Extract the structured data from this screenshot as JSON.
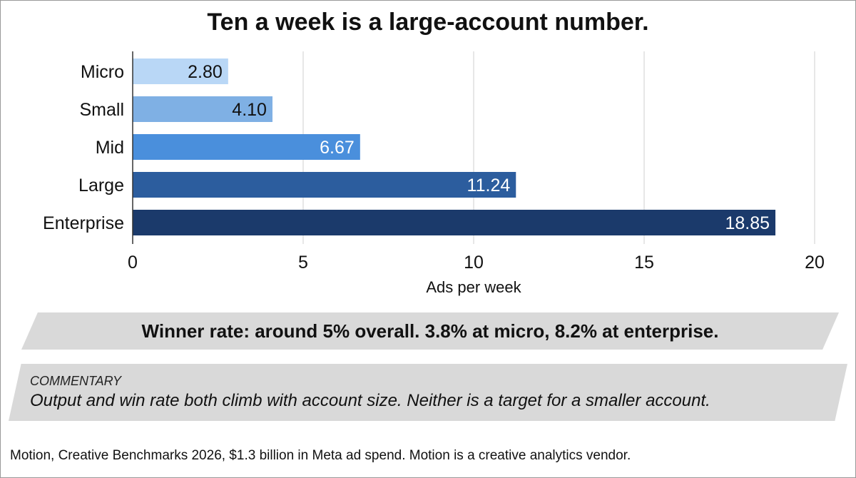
{
  "chart_data": {
    "type": "bar",
    "orientation": "horizontal",
    "title": "Ten a week is a large-account number.",
    "xlabel": "Ads per week",
    "ylabel": "",
    "categories": [
      "Micro",
      "Small",
      "Mid",
      "Large",
      "Enterprise"
    ],
    "values": [
      2.8,
      4.1,
      6.67,
      11.24,
      18.85
    ],
    "value_labels": [
      "2.80",
      "4.10",
      "6.67",
      "11.24",
      "18.85"
    ],
    "bar_colors": [
      "#b9d7f6",
      "#7fb0e4",
      "#4a8fdc",
      "#2c5d9e",
      "#1b3a6b"
    ],
    "value_label_colors": [
      "#111111",
      "#111111",
      "#ffffff",
      "#ffffff",
      "#ffffff"
    ],
    "xlim": [
      0,
      20
    ],
    "xticks": [
      0,
      5,
      10,
      15,
      20
    ],
    "xtick_labels": [
      "0",
      "5",
      "10",
      "15",
      "20"
    ],
    "grid": "vertical"
  },
  "banner": {
    "text": "Winner rate: around 5% overall. 3.8% at micro, 8.2% at enterprise."
  },
  "commentary": {
    "label": "COMMENTARY",
    "text": "Output and win rate both climb with account size. Neither is a target for a smaller account."
  },
  "source": "Motion, Creative Benchmarks 2026, $1.3 billion in Meta ad spend. Motion is a creative analytics vendor."
}
